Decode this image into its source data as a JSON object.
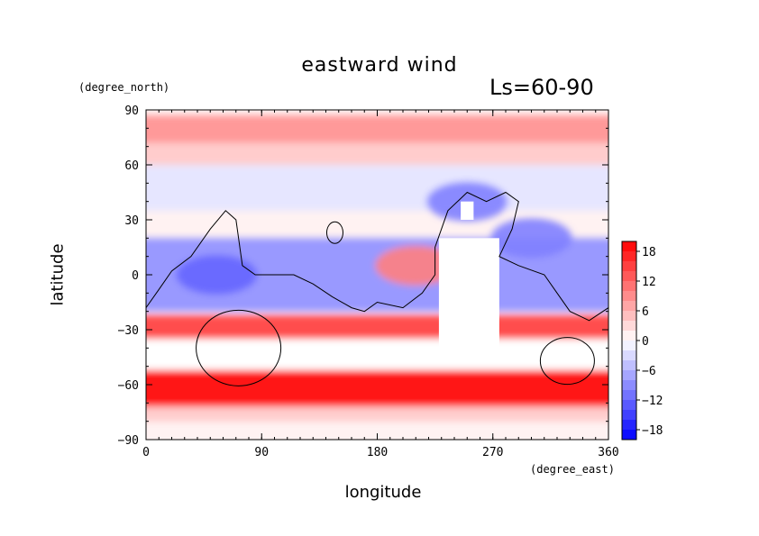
{
  "chart_data": {
    "type": "heatmap",
    "title": "eastward wind",
    "subtitle": "Ls=60-90",
    "xlabel": "longitude",
    "ylabel": "latitude",
    "x_unit": "(degree_east)",
    "y_unit": "(degree_north)",
    "xlim": [
      0,
      360
    ],
    "ylim": [
      -90,
      90
    ],
    "x_ticks": [
      0,
      90,
      180,
      270,
      360
    ],
    "x_tick_labels": [
      "0",
      "90",
      "180",
      "270",
      "360"
    ],
    "y_ticks": [
      90,
      60,
      30,
      0,
      -30,
      -60,
      -90
    ],
    "y_tick_labels": [
      "90",
      "60",
      "30",
      "0",
      "−30",
      "−60",
      "−90"
    ],
    "colorbar": {
      "range": [
        -20,
        20
      ],
      "step": 2,
      "ticks": [
        18,
        12,
        6,
        0,
        -6,
        -12,
        -18
      ],
      "tick_labels": [
        "18",
        "12",
        "6",
        "0",
        "−6",
        "−12",
        "−18"
      ],
      "negative_color": "#0000ff",
      "positive_color": "#ff0000",
      "neutral_color": "#ffffff"
    },
    "latitude_bands": [
      {
        "lat_min": 72,
        "lat_max": 87,
        "wind": 8
      },
      {
        "lat_min": 60,
        "lat_max": 72,
        "wind": 4
      },
      {
        "lat_min": 35,
        "lat_max": 60,
        "wind": -2
      },
      {
        "lat_min": -20,
        "lat_max": 20,
        "wind": -8
      },
      {
        "lat_min": -45,
        "lat_max": -22,
        "wind": 14
      },
      {
        "lat_min": -52,
        "lat_max": -35,
        "wind": "missing"
      },
      {
        "lat_min": -72,
        "lat_max": -52,
        "wind": 18
      },
      {
        "lat_min": -80,
        "lat_max": -72,
        "wind": 4
      }
    ],
    "features": [
      {
        "name": "equatorial easterly jet",
        "lon": 55,
        "lat": 0,
        "wind": -12
      },
      {
        "name": "northern low-latitude easterlies",
        "lon": 300,
        "lat": 20,
        "wind": -10
      },
      {
        "name": "topographic westerly",
        "lon": 210,
        "lat": 5,
        "wind": 10
      },
      {
        "name": "high-latitude easterlies",
        "lon": 250,
        "lat": 40,
        "wind": -10
      }
    ],
    "missing_regions": [
      {
        "lon_min": 228,
        "lon_max": 275,
        "lat_min": -40,
        "lat_max": 20
      },
      {
        "lon_min": 245,
        "lon_max": 255,
        "lat_min": 30,
        "lat_max": 40
      }
    ],
    "topography_contour": "0 m elevation (black line)"
  }
}
